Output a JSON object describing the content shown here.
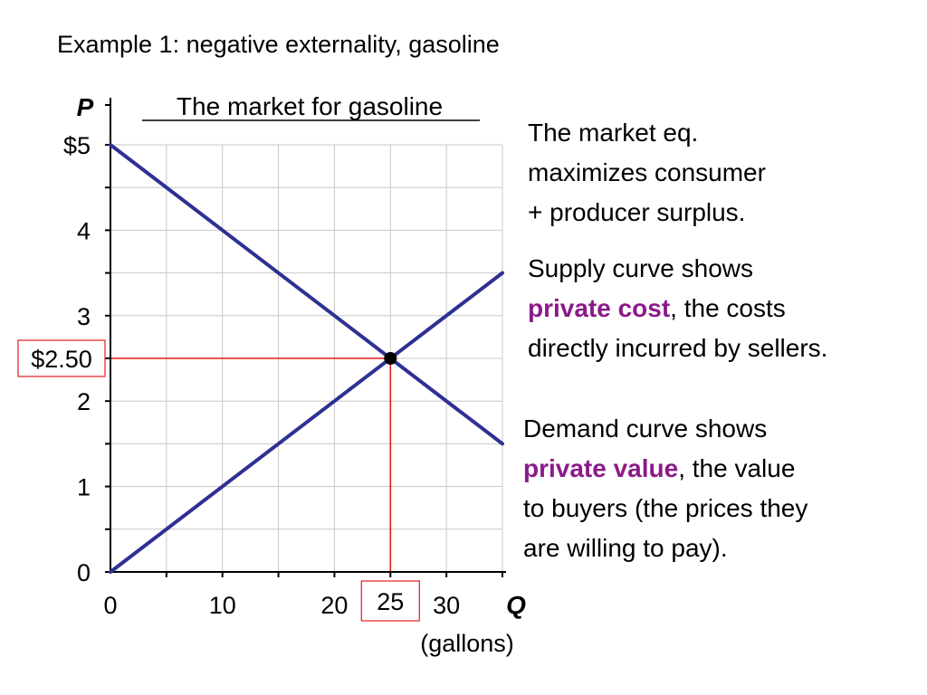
{
  "slide": {
    "title": "Example 1: negative externality, gasoline"
  },
  "chart_data": {
    "type": "line",
    "title": "The market for gasoline",
    "ylabel": "P",
    "xlabel": "Q",
    "xlabel_unit": "(gallons)",
    "xlim": [
      0,
      35
    ],
    "ylim": [
      0,
      5
    ],
    "x_ticks": [
      0,
      10,
      20,
      30
    ],
    "x_tick_labels": [
      "0",
      "10",
      "20",
      "30"
    ],
    "y_ticks": [
      0,
      1,
      2,
      3,
      4,
      5
    ],
    "y_tick_labels": [
      "0",
      "1",
      "2",
      "3",
      "4",
      "$5"
    ],
    "grid": true,
    "series": [
      {
        "x": [
          0,
          35
        ],
        "y": [
          5,
          1.5
        ],
        "color": "#2e3192"
      },
      {
        "x": [
          0,
          35
        ],
        "y": [
          0,
          3.5
        ],
        "color": "#2e3192"
      }
    ],
    "equilibrium": {
      "x": 25,
      "y": 2.5,
      "price_label": "$2.50",
      "quantity_label": "25",
      "guide_color": "#e31a1c"
    }
  },
  "notes": [
    {
      "lines": [
        [
          "The market eq."
        ],
        [
          "maximizes consumer"
        ],
        [
          "+ producer surplus."
        ]
      ]
    },
    {
      "lines": [
        [
          "Supply curve shows"
        ],
        [
          "private cost",
          ", the costs"
        ],
        [
          "directly incurred by sellers."
        ]
      ]
    },
    {
      "lines": [
        [
          "Demand curve shows"
        ],
        [
          "private value",
          ", the value"
        ],
        [
          "to buyers (the prices they"
        ],
        [
          "are willing to pay)."
        ]
      ]
    }
  ]
}
